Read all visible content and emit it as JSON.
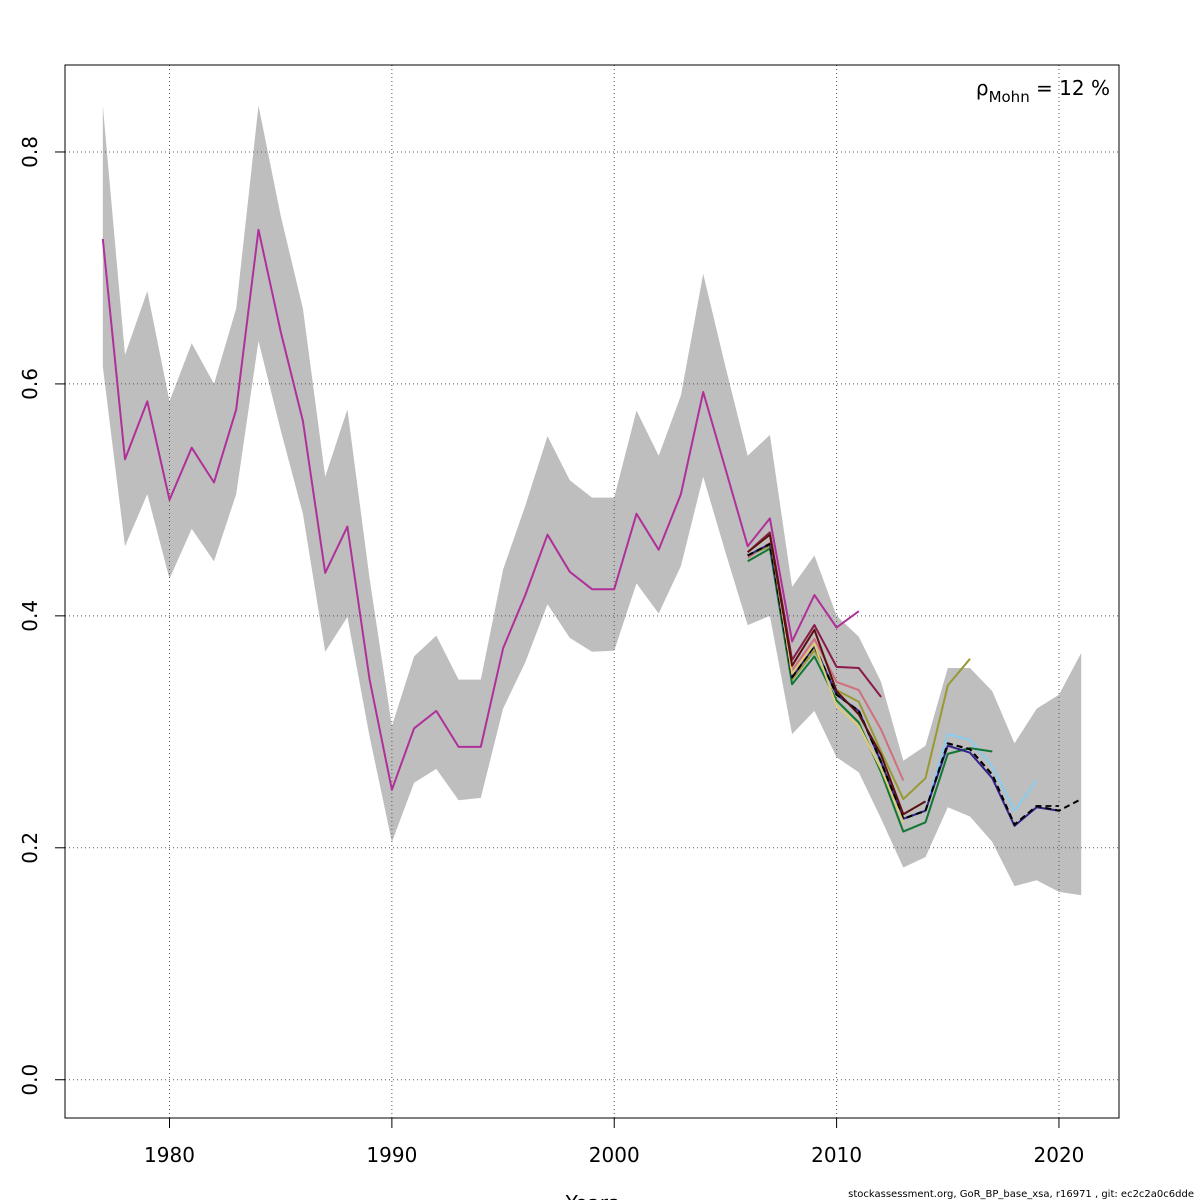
{
  "chart_data": {
    "type": "line",
    "title": "",
    "xlabel": "Years",
    "ylabel": "",
    "xlim": [
      1975.3,
      2022.7
    ],
    "ylim": [
      -0.033,
      0.875
    ],
    "xticks": [
      1980,
      1990,
      2000,
      2010,
      2020
    ],
    "yticks": [
      0.0,
      0.2,
      0.4,
      0.6,
      0.8
    ],
    "ytick_labels": [
      "0.0",
      "0.2",
      "0.4",
      "0.6",
      "0.8"
    ],
    "grid": true,
    "annotation": {
      "symbol": "ρ",
      "subscript": "Mohn",
      "rest": " = 12 %"
    },
    "band_color": "#bebebe",
    "band": {
      "x": [
        1977,
        1978,
        1979,
        1980,
        1981,
        1982,
        1983,
        1984,
        1985,
        1986,
        1987,
        1988,
        1989,
        1990,
        1991,
        1992,
        1993,
        1994,
        1995,
        1996,
        1997,
        1998,
        1999,
        2000,
        2001,
        2002,
        2003,
        2004,
        2005,
        2006,
        2007,
        2008,
        2009,
        2010,
        2011,
        2012,
        2013,
        2014,
        2015,
        2016,
        2017,
        2018,
        2019,
        2020,
        2021
      ],
      "upper": [
        0.84,
        0.625,
        0.68,
        0.585,
        0.635,
        0.6,
        0.665,
        0.84,
        0.745,
        0.665,
        0.52,
        0.578,
        0.432,
        0.305,
        0.365,
        0.383,
        0.345,
        0.345,
        0.44,
        0.495,
        0.555,
        0.517,
        0.502,
        0.502,
        0.577,
        0.538,
        0.59,
        0.695,
        0.615,
        0.538,
        0.556,
        0.425,
        0.452,
        0.4,
        0.382,
        0.343,
        0.275,
        0.288,
        0.355,
        0.355,
        0.335,
        0.29,
        0.32,
        0.332,
        0.368
      ],
      "lower": [
        0.615,
        0.46,
        0.505,
        0.432,
        0.475,
        0.447,
        0.505,
        0.637,
        0.56,
        0.488,
        0.369,
        0.399,
        0.296,
        0.205,
        0.256,
        0.268,
        0.241,
        0.243,
        0.32,
        0.36,
        0.41,
        0.381,
        0.369,
        0.37,
        0.428,
        0.402,
        0.443,
        0.52,
        0.455,
        0.392,
        0.4,
        0.298,
        0.318,
        0.278,
        0.265,
        0.225,
        0.183,
        0.192,
        0.235,
        0.227,
        0.205,
        0.167,
        0.172,
        0.162,
        0.159
      ]
    },
    "series": [
      {
        "color": "#b0309a",
        "start": 1977,
        "values": [
          0.725,
          0.535,
          0.585,
          0.5,
          0.545,
          0.515,
          0.578,
          0.733,
          0.645,
          0.568,
          0.437,
          0.477,
          0.345,
          0.25,
          0.303,
          0.318,
          0.287,
          0.287,
          0.372,
          0.418,
          0.47,
          0.438,
          0.423,
          0.423,
          0.488,
          0.457,
          0.505,
          0.593,
          0.527,
          0.46,
          0.484,
          0.378,
          0.418,
          0.39,
          0.404
        ]
      },
      {
        "color": "#8a1a4a",
        "start": 2006,
        "values": [
          0.455,
          0.472,
          0.362,
          0.392,
          0.356,
          0.355,
          0.33
        ]
      },
      {
        "color": "#d0707e",
        "start": 2006,
        "values": [
          0.45,
          0.463,
          0.353,
          0.38,
          0.343,
          0.336,
          0.302,
          0.258
        ]
      },
      {
        "color": "#999933",
        "start": 2006,
        "values": [
          0.452,
          0.46,
          0.345,
          0.37,
          0.336,
          0.326,
          0.283,
          0.242,
          0.26,
          0.34,
          0.363
        ]
      },
      {
        "color": "#88ccee",
        "start": 2006,
        "values": [
          0.452,
          0.462,
          0.347,
          0.374,
          0.333,
          0.318,
          0.275,
          0.225,
          0.232,
          0.298,
          0.293,
          0.27,
          0.232,
          0.258
        ]
      },
      {
        "color": "#1a1a1a",
        "start": 2006,
        "values": [
          0.452,
          0.462,
          0.347,
          0.374,
          0.332,
          0.318,
          0.274,
          0.225,
          0.232,
          0.29,
          0.285,
          0.263,
          0.22,
          0.236,
          0.236
        ],
        "dashed": true
      },
      {
        "color": "#117733",
        "start": 2006,
        "values": [
          0.447,
          0.458,
          0.341,
          0.365,
          0.327,
          0.308,
          0.265,
          0.214,
          0.222,
          0.281,
          0.286,
          0.283
        ]
      },
      {
        "color": "#332288",
        "start": 2006,
        "values": [
          0.452,
          0.462,
          0.347,
          0.374,
          0.332,
          0.318,
          0.274,
          0.225,
          0.232,
          0.288,
          0.282,
          0.26,
          0.219,
          0.235,
          0.232
        ]
      },
      {
        "color": "#000000",
        "start": 2006,
        "values": [
          0.452,
          0.462,
          0.347,
          0.374,
          0.332,
          0.318,
          0.274,
          0.225,
          0.232,
          0.29,
          0.285,
          0.263,
          0.22,
          0.236,
          0.232,
          0.242
        ],
        "dashed": true
      },
      {
        "color": "#ddcc77",
        "start": 2006,
        "values": [
          0.455,
          0.47,
          0.35,
          0.376,
          0.322,
          0.305,
          0.268,
          0.222
        ]
      },
      {
        "color": "#5b0f0f",
        "start": 2006,
        "values": [
          0.455,
          0.47,
          0.357,
          0.388,
          0.335,
          0.315,
          0.28,
          0.229,
          0.24
        ]
      }
    ]
  },
  "footer": "stockassessment.org, GoR_BP_base_xsa, r16971 , git: ec2c2a0c6dde"
}
